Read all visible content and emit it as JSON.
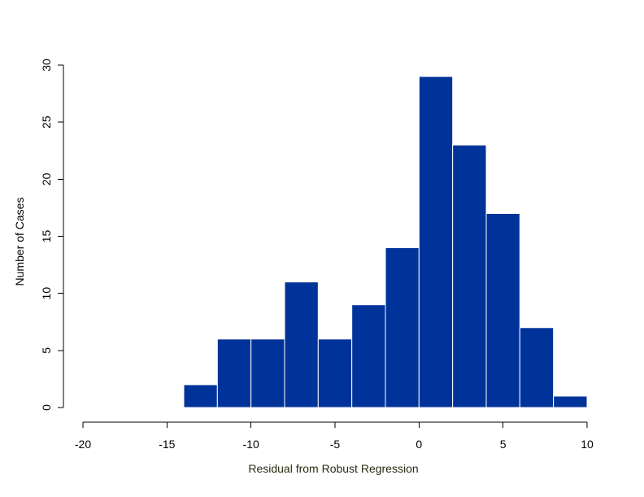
{
  "chart_data": {
    "type": "bar",
    "title": "",
    "xlabel": "Residual from Robust Regression",
    "ylabel": "Number of Cases",
    "xlim": [
      -20,
      10
    ],
    "ylim": [
      0,
      30
    ],
    "xticks": [
      -20,
      -15,
      -10,
      -5,
      0,
      5,
      10
    ],
    "yticks": [
      0,
      5,
      10,
      15,
      20,
      25,
      30
    ],
    "bins": [
      {
        "start": -14,
        "end": -12,
        "count": 2
      },
      {
        "start": -12,
        "end": -10,
        "count": 6
      },
      {
        "start": -10,
        "end": -8,
        "count": 6
      },
      {
        "start": -8,
        "end": -6,
        "count": 11
      },
      {
        "start": -6,
        "end": -4,
        "count": 6
      },
      {
        "start": -4,
        "end": -2,
        "count": 9
      },
      {
        "start": -2,
        "end": 0,
        "count": 14
      },
      {
        "start": 0,
        "end": 2,
        "count": 29
      },
      {
        "start": 2,
        "end": 4,
        "count": 23
      },
      {
        "start": 4,
        "end": 6,
        "count": 17
      },
      {
        "start": 6,
        "end": 8,
        "count": 7
      },
      {
        "start": 8,
        "end": 10,
        "count": 1
      }
    ],
    "bar_color": "#003399",
    "bar_edge_color": "#ffffff",
    "grid": false,
    "legend": "none"
  }
}
